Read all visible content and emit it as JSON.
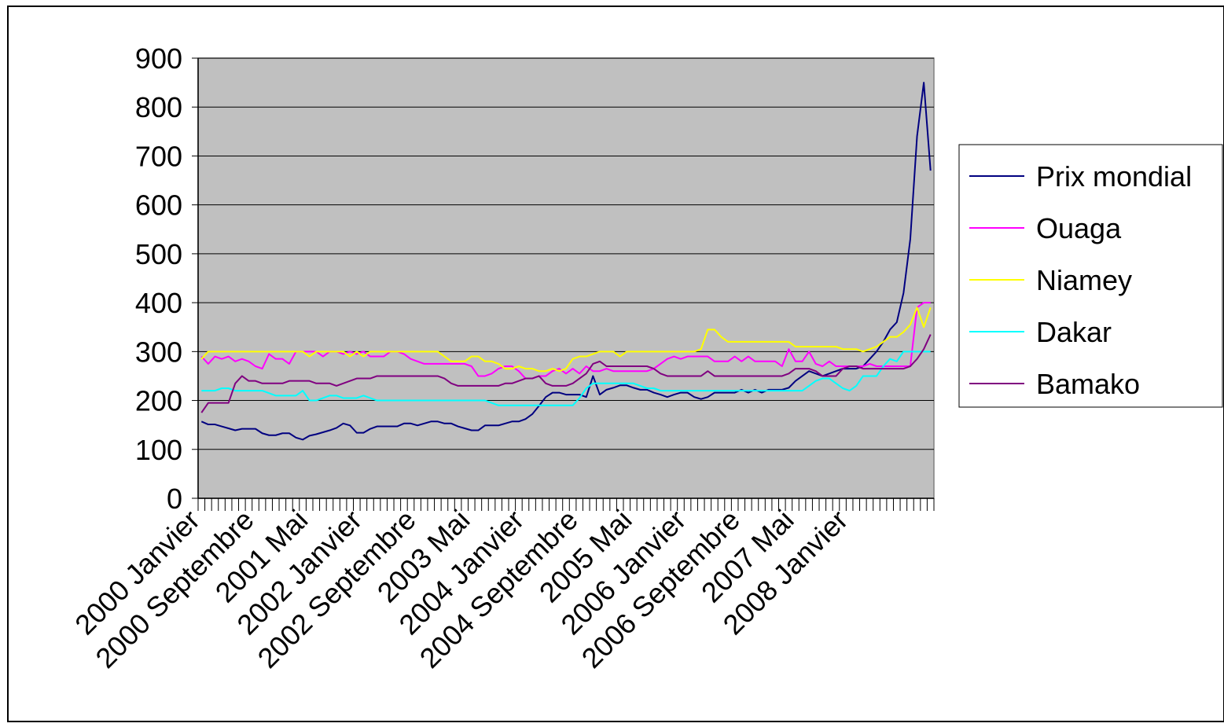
{
  "chart_data": {
    "type": "line",
    "title": "",
    "xlabel": "",
    "ylabel": "",
    "ylim": [
      0,
      900
    ],
    "yticks": [
      0,
      100,
      200,
      300,
      400,
      500,
      600,
      700,
      800,
      900
    ],
    "grid": true,
    "legend_position": "right",
    "plot_background": "#c0c0c0",
    "x_tick_labels": [
      {
        "index": 0,
        "label": "2000 Janvier"
      },
      {
        "index": 8,
        "label": "2000 Septembre"
      },
      {
        "index": 16,
        "label": "2001 Mai"
      },
      {
        "index": 24,
        "label": "2002 Janvier"
      },
      {
        "index": 32,
        "label": "2002 Septembre"
      },
      {
        "index": 40,
        "label": "2003 Mai"
      },
      {
        "index": 48,
        "label": "2004 Janvier"
      },
      {
        "index": 56,
        "label": "2004 Septembre"
      },
      {
        "index": 64,
        "label": "2005 Mai"
      },
      {
        "index": 72,
        "label": "2006 Janvier"
      },
      {
        "index": 80,
        "label": "2006 Septembre"
      },
      {
        "index": 88,
        "label": "2007 Mai"
      },
      {
        "index": 96,
        "label": "2008 Janvier"
      }
    ],
    "series": [
      {
        "name": "Prix mondial",
        "color": "#000080",
        "values": [
          157,
          151,
          151,
          147,
          143,
          139,
          142,
          142,
          142,
          133,
          129,
          129,
          133,
          133,
          124,
          120,
          128,
          131,
          135,
          139,
          144,
          153,
          149,
          134,
          134,
          142,
          147,
          147,
          147,
          147,
          153,
          153,
          149,
          153,
          157,
          157,
          153,
          153,
          147,
          143,
          139,
          139,
          149,
          149,
          149,
          153,
          157,
          157,
          162,
          172,
          189,
          207,
          216,
          216,
          212,
          212,
          212,
          207,
          250,
          212,
          222,
          226,
          231,
          231,
          226,
          222,
          222,
          216,
          212,
          207,
          212,
          216,
          216,
          207,
          203,
          207,
          216,
          216,
          216,
          216,
          222,
          216,
          222,
          216,
          222,
          222,
          222,
          226,
          240,
          250,
          260,
          255,
          250,
          255,
          260,
          265,
          265,
          265,
          270,
          285,
          300,
          320,
          345,
          360,
          420,
          530,
          740,
          850,
          670
        ]
      },
      {
        "name": "Ouaga",
        "color": "#ff00ff",
        "values": [
          290,
          275,
          290,
          285,
          290,
          280,
          285,
          280,
          270,
          265,
          295,
          285,
          285,
          275,
          300,
          300,
          300,
          300,
          290,
          300,
          300,
          295,
          300,
          295,
          300,
          290,
          290,
          290,
          300,
          300,
          295,
          285,
          280,
          275,
          275,
          275,
          275,
          275,
          275,
          275,
          270,
          250,
          250,
          255,
          265,
          270,
          270,
          260,
          245,
          245,
          250,
          250,
          260,
          265,
          255,
          265,
          255,
          270,
          260,
          260,
          265,
          260,
          260,
          260,
          260,
          260,
          260,
          265,
          275,
          285,
          290,
          285,
          290,
          290,
          290,
          290,
          280,
          280,
          280,
          290,
          280,
          290,
          280,
          280,
          280,
          280,
          270,
          305,
          280,
          280,
          300,
          275,
          270,
          280,
          270,
          270,
          270,
          270,
          270,
          275,
          270,
          270,
          270,
          270,
          270,
          270,
          390,
          400,
          400
        ]
      },
      {
        "name": "Niamey",
        "color": "#ffff00",
        "values": [
          285,
          300,
          300,
          300,
          300,
          300,
          300,
          300,
          300,
          300,
          300,
          300,
          300,
          300,
          300,
          300,
          290,
          300,
          300,
          300,
          300,
          300,
          290,
          300,
          290,
          300,
          300,
          300,
          300,
          300,
          300,
          300,
          300,
          300,
          300,
          300,
          290,
          280,
          280,
          280,
          290,
          290,
          280,
          280,
          275,
          265,
          265,
          270,
          265,
          265,
          260,
          260,
          265,
          260,
          265,
          285,
          290,
          290,
          295,
          300,
          300,
          300,
          290,
          300,
          300,
          300,
          300,
          300,
          300,
          300,
          300,
          300,
          300,
          300,
          305,
          345,
          345,
          330,
          320,
          320,
          320,
          320,
          320,
          320,
          320,
          320,
          320,
          320,
          310,
          310,
          310,
          310,
          310,
          310,
          310,
          305,
          305,
          305,
          300,
          305,
          310,
          320,
          330,
          330,
          340,
          355,
          390,
          350,
          390
        ]
      },
      {
        "name": "Dakar",
        "color": "#00ffff",
        "values": [
          220,
          220,
          220,
          225,
          225,
          220,
          220,
          220,
          220,
          220,
          215,
          210,
          210,
          210,
          210,
          220,
          200,
          200,
          205,
          210,
          210,
          205,
          205,
          205,
          210,
          205,
          200,
          200,
          200,
          200,
          200,
          200,
          200,
          200,
          200,
          200,
          200,
          200,
          200,
          200,
          200,
          200,
          200,
          195,
          190,
          190,
          190,
          190,
          190,
          190,
          190,
          190,
          190,
          190,
          190,
          190,
          205,
          225,
          235,
          235,
          235,
          235,
          235,
          235,
          235,
          230,
          225,
          225,
          220,
          220,
          220,
          220,
          220,
          220,
          220,
          220,
          220,
          220,
          220,
          220,
          220,
          220,
          220,
          220,
          220,
          220,
          220,
          220,
          220,
          220,
          230,
          240,
          245,
          245,
          235,
          225,
          220,
          230,
          250,
          250,
          250,
          270,
          285,
          280,
          300,
          300,
          300,
          300,
          300
        ]
      },
      {
        "name": "Bamako",
        "color": "#800080",
        "values": [
          175,
          195,
          195,
          195,
          195,
          235,
          250,
          240,
          240,
          235,
          235,
          235,
          235,
          240,
          240,
          240,
          240,
          235,
          235,
          235,
          230,
          235,
          240,
          245,
          245,
          245,
          250,
          250,
          250,
          250,
          250,
          250,
          250,
          250,
          250,
          250,
          245,
          235,
          230,
          230,
          230,
          230,
          230,
          230,
          230,
          235,
          235,
          240,
          245,
          245,
          250,
          235,
          230,
          230,
          230,
          235,
          245,
          255,
          275,
          280,
          270,
          270,
          270,
          270,
          270,
          270,
          270,
          265,
          255,
          250,
          250,
          250,
          250,
          250,
          250,
          260,
          250,
          250,
          250,
          250,
          250,
          250,
          250,
          250,
          250,
          250,
          250,
          255,
          265,
          265,
          265,
          260,
          250,
          250,
          250,
          265,
          270,
          270,
          265,
          265,
          265,
          265,
          265,
          265,
          265,
          270,
          285,
          305,
          335
        ]
      }
    ]
  }
}
